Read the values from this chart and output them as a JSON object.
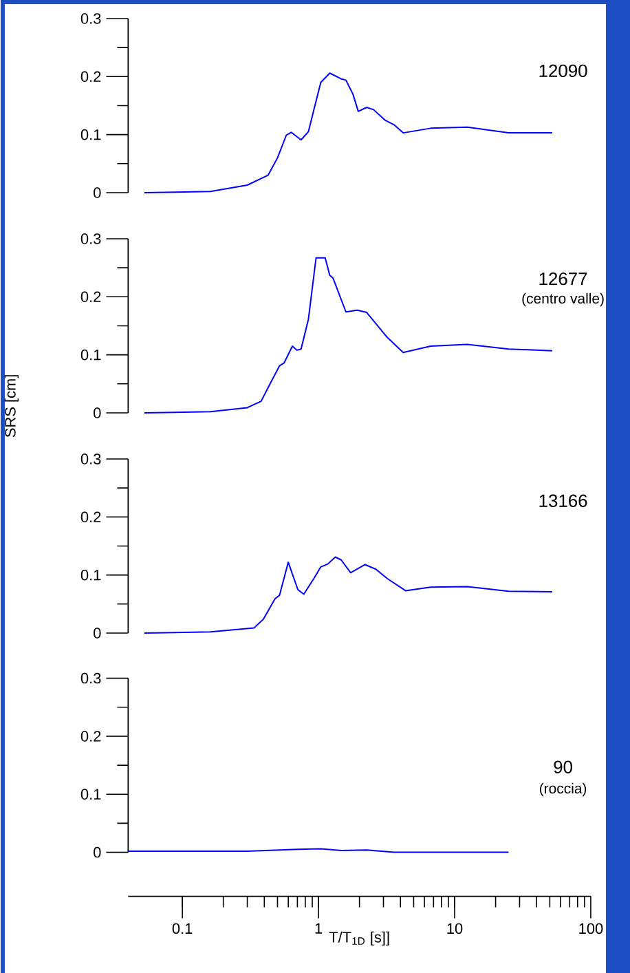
{
  "chart_data": [
    {
      "type": "line",
      "annotations": [
        "12090"
      ],
      "xlim": [
        0.04,
        100
      ],
      "log": "x",
      "ylim": [
        0,
        0.3
      ],
      "yticks": [
        0,
        {
          "value": 0.05,
          "label": null
        },
        0.1,
        {
          "value": 0.15,
          "label": null
        },
        0.2,
        {
          "value": 0.25,
          "label": null
        },
        0.3
      ],
      "tick_labels": "y",
      "color": "#0000ff",
      "x": [
        0.0526,
        0.161,
        0.3,
        0.426,
        0.5,
        0.58,
        0.63,
        0.745,
        0.843,
        0.925,
        1.04,
        1.21,
        1.47,
        1.59,
        1.79,
        1.96,
        2.26,
        2.54,
        3.08,
        3.59,
        4.19,
        6.67,
        12.4,
        24.9,
        52.1
      ],
      "values": [
        0,
        0.002,
        0.013,
        0.03,
        0.06,
        0.099,
        0.104,
        0.091,
        0.105,
        0.143,
        0.19,
        0.206,
        0.196,
        0.194,
        0.17,
        0.14,
        0.147,
        0.143,
        0.125,
        0.117,
        0.103,
        0.111,
        0.113,
        0.103,
        0.103
      ]
    },
    {
      "type": "line",
      "annotations": [
        "12677",
        "(centro valle)"
      ],
      "ylabel": "SRS [cm]",
      "xlim": [
        0.04,
        100
      ],
      "log": "x",
      "ylim": [
        0,
        0.3
      ],
      "yticks": [
        0,
        {
          "value": 0.05,
          "label": null
        },
        0.1,
        {
          "value": 0.15,
          "label": null
        },
        0.2,
        {
          "value": 0.25,
          "label": null
        },
        0.3
      ],
      "tick_labels": "y",
      "color": "#0000ff",
      "x": [
        0.0526,
        0.161,
        0.3,
        0.379,
        0.443,
        0.517,
        0.559,
        0.643,
        0.695,
        0.745,
        0.843,
        0.96,
        1.12,
        1.21,
        1.28,
        1.59,
        1.93,
        2.26,
        3.2,
        4.19,
        6.67,
        12.4,
        24.9,
        52.1
      ],
      "values": [
        0,
        0.002,
        0.009,
        0.02,
        0.051,
        0.081,
        0.086,
        0.115,
        0.108,
        0.11,
        0.161,
        0.267,
        0.267,
        0.237,
        0.232,
        0.174,
        0.177,
        0.173,
        0.13,
        0.104,
        0.115,
        0.118,
        0.11,
        0.107
      ]
    },
    {
      "type": "line",
      "annotations": [
        "13166"
      ],
      "xlim": [
        0.04,
        100
      ],
      "log": "x",
      "ylim": [
        0,
        0.3
      ],
      "yticks": [
        0,
        {
          "value": 0.05,
          "label": null
        },
        0.1,
        {
          "value": 0.15,
          "label": null
        },
        0.2,
        {
          "value": 0.25,
          "label": null
        },
        0.3
      ],
      "tick_labels": "y",
      "color": "#0000ff",
      "x": [
        0.0526,
        0.161,
        0.337,
        0.394,
        0.479,
        0.517,
        0.6,
        0.705,
        0.78,
        0.925,
        1.04,
        1.17,
        1.33,
        1.47,
        1.72,
        2.2,
        2.64,
        3.2,
        4.36,
        6.67,
        12.4,
        24.9,
        52.1
      ],
      "values": [
        0,
        0.002,
        0.009,
        0.024,
        0.059,
        0.065,
        0.122,
        0.075,
        0.067,
        0.094,
        0.114,
        0.119,
        0.131,
        0.126,
        0.104,
        0.118,
        0.11,
        0.094,
        0.073,
        0.079,
        0.08,
        0.072,
        0.071
      ]
    },
    {
      "type": "line",
      "annotations": [
        "90",
        "(roccia)"
      ],
      "xlabel": "T/T$_{1D}$ [s]]",
      "xlim": [
        0.04,
        100
      ],
      "log": "x",
      "ylim": [
        0,
        0.3
      ],
      "yticks": [
        0,
        {
          "value": 0.05,
          "label": null
        },
        0.1,
        {
          "value": 0.15,
          "label": null
        },
        0.2,
        {
          "value": 0.25,
          "label": null
        },
        0.3
      ],
      "color": "#0000ff",
      "xticks": [
        0.1,
        1,
        10,
        100
      ],
      "x": [
        0.04,
        0.3,
        0.705,
        1.04,
        1.47,
        2.26,
        3.59,
        10,
        24.9
      ],
      "values": [
        0.002,
        0.002,
        0.005,
        0.006,
        0.003,
        0.004,
        0,
        0,
        0
      ]
    }
  ]
}
